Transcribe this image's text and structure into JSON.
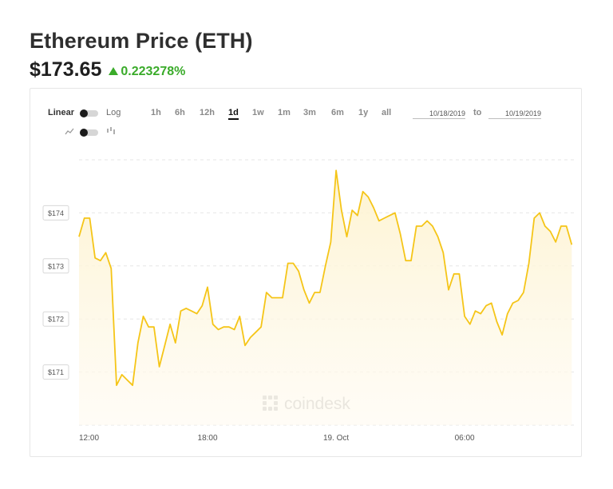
{
  "header": {
    "title": "Ethereum Price (ETH)",
    "price": "$173.65",
    "change": "0.223278%",
    "change_color": "#3aab2a"
  },
  "controls": {
    "linear_label": "Linear",
    "log_label": "Log",
    "ranges": [
      "1h",
      "6h",
      "12h",
      "1d",
      "1w",
      "1m",
      "3m",
      "6m",
      "1y",
      "all"
    ],
    "active_range": "1d",
    "date_from": "10/18/2019",
    "to_label": "to",
    "date_to": "10/19/2019",
    "line_icon": "line-chart-icon",
    "bar_icon": "bar-chart-icon"
  },
  "watermark": {
    "text": "coindesk",
    "icon": "coindesk-logo-icon"
  },
  "chart_data": {
    "type": "area",
    "line_color": "#f5c518",
    "fill_color": "#fdf6dc",
    "grid": true,
    "xlim": [
      0,
      23.1
    ],
    "ylim": [
      170.0,
      175.0
    ],
    "x_ticks": [
      {
        "x": 0,
        "label": "12:00"
      },
      {
        "x": 6,
        "label": "18:00"
      },
      {
        "x": 12,
        "label": "19. Oct"
      },
      {
        "x": 18,
        "label": "06:00"
      }
    ],
    "y_ticks": [
      {
        "y": 171,
        "label": "$171"
      },
      {
        "y": 172,
        "label": "$172"
      },
      {
        "y": 173,
        "label": "$173"
      },
      {
        "y": 174,
        "label": "$174"
      }
    ],
    "x": [
      0,
      0.25,
      0.5,
      0.75,
      1.0,
      1.25,
      1.5,
      1.75,
      2.0,
      2.25,
      2.5,
      2.75,
      3.0,
      3.25,
      3.5,
      3.75,
      4.0,
      4.25,
      4.5,
      4.75,
      5.0,
      5.25,
      5.5,
      5.75,
      6.0,
      6.25,
      6.5,
      6.75,
      7.0,
      7.25,
      7.5,
      7.75,
      8.0,
      8.25,
      8.5,
      8.75,
      9.0,
      9.25,
      9.5,
      9.75,
      10.0,
      10.25,
      10.5,
      10.75,
      11.0,
      11.25,
      11.5,
      11.75,
      12.0,
      12.25,
      12.5,
      12.75,
      13.0,
      13.25,
      13.5,
      13.75,
      14.0,
      14.25,
      14.5,
      14.75,
      15.0,
      15.25,
      15.5,
      15.75,
      16.0,
      16.25,
      16.5,
      16.75,
      17.0,
      17.25,
      17.5,
      17.75,
      18.0,
      18.25,
      18.5,
      18.75,
      19.0,
      19.25,
      19.5,
      19.75,
      20.0,
      20.25,
      20.5,
      20.75,
      21.0,
      21.25,
      21.5,
      21.75,
      22.0,
      22.25,
      22.5,
      22.75,
      23.0
    ],
    "y": [
      173.55,
      173.9,
      173.9,
      173.15,
      173.1,
      173.25,
      172.95,
      170.75,
      170.95,
      170.85,
      170.75,
      171.55,
      172.05,
      171.85,
      171.85,
      171.1,
      171.5,
      171.9,
      171.55,
      172.15,
      172.2,
      172.15,
      172.1,
      172.25,
      172.6,
      171.9,
      171.8,
      171.85,
      171.85,
      171.8,
      172.05,
      171.5,
      171.65,
      171.75,
      171.85,
      172.5,
      172.4,
      172.4,
      172.4,
      173.05,
      173.05,
      172.9,
      172.55,
      172.3,
      172.5,
      172.5,
      173.0,
      173.45,
      174.8,
      174.05,
      173.55,
      174.05,
      173.95,
      174.4,
      174.3,
      174.1,
      173.85,
      173.9,
      173.95,
      174.0,
      173.6,
      173.1,
      173.1,
      173.75,
      173.75,
      173.85,
      173.75,
      173.55,
      173.25,
      172.55,
      172.85,
      172.85,
      172.05,
      171.9,
      172.15,
      172.1,
      172.25,
      172.3,
      171.95,
      171.7,
      172.1,
      172.3,
      172.35,
      172.5,
      173.05,
      173.9,
      174.0,
      173.75,
      173.65,
      173.45,
      173.75,
      173.75,
      173.4
    ]
  }
}
